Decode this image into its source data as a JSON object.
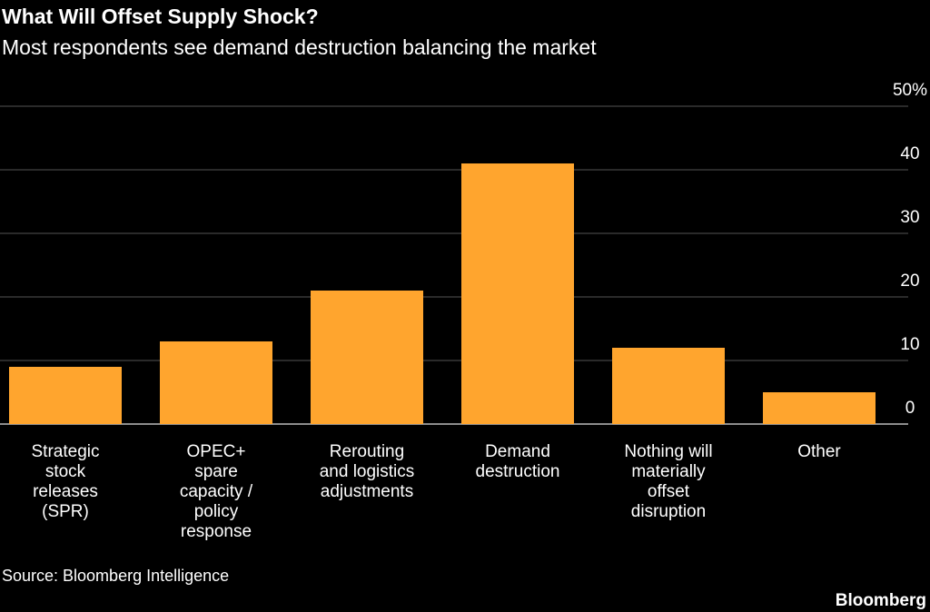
{
  "chart_data": {
    "type": "bar",
    "title": "What Will Offset Supply Shock?",
    "subtitle": "Most respondents see demand destruction balancing the market",
    "categories": [
      "Strategic\nstock\nreleases\n(SPR)",
      "OPEC+\nspare\ncapacity /\npolicy\nresponse",
      "Rerouting\nand logistics\nadjustments",
      "Demand\ndestruction",
      "Nothing will\nmaterially\noffset\ndisruption",
      "Other"
    ],
    "values": [
      9,
      13,
      21,
      41,
      12,
      5
    ],
    "color": "#ffa52e",
    "ylim": [
      0,
      50
    ],
    "yticks": [
      0,
      10,
      20,
      30,
      40,
      {
        "value": 50,
        "label": "50%"
      }
    ],
    "grid": true,
    "source": "Source: Bloomberg Intelligence",
    "brand": "Bloomberg"
  }
}
